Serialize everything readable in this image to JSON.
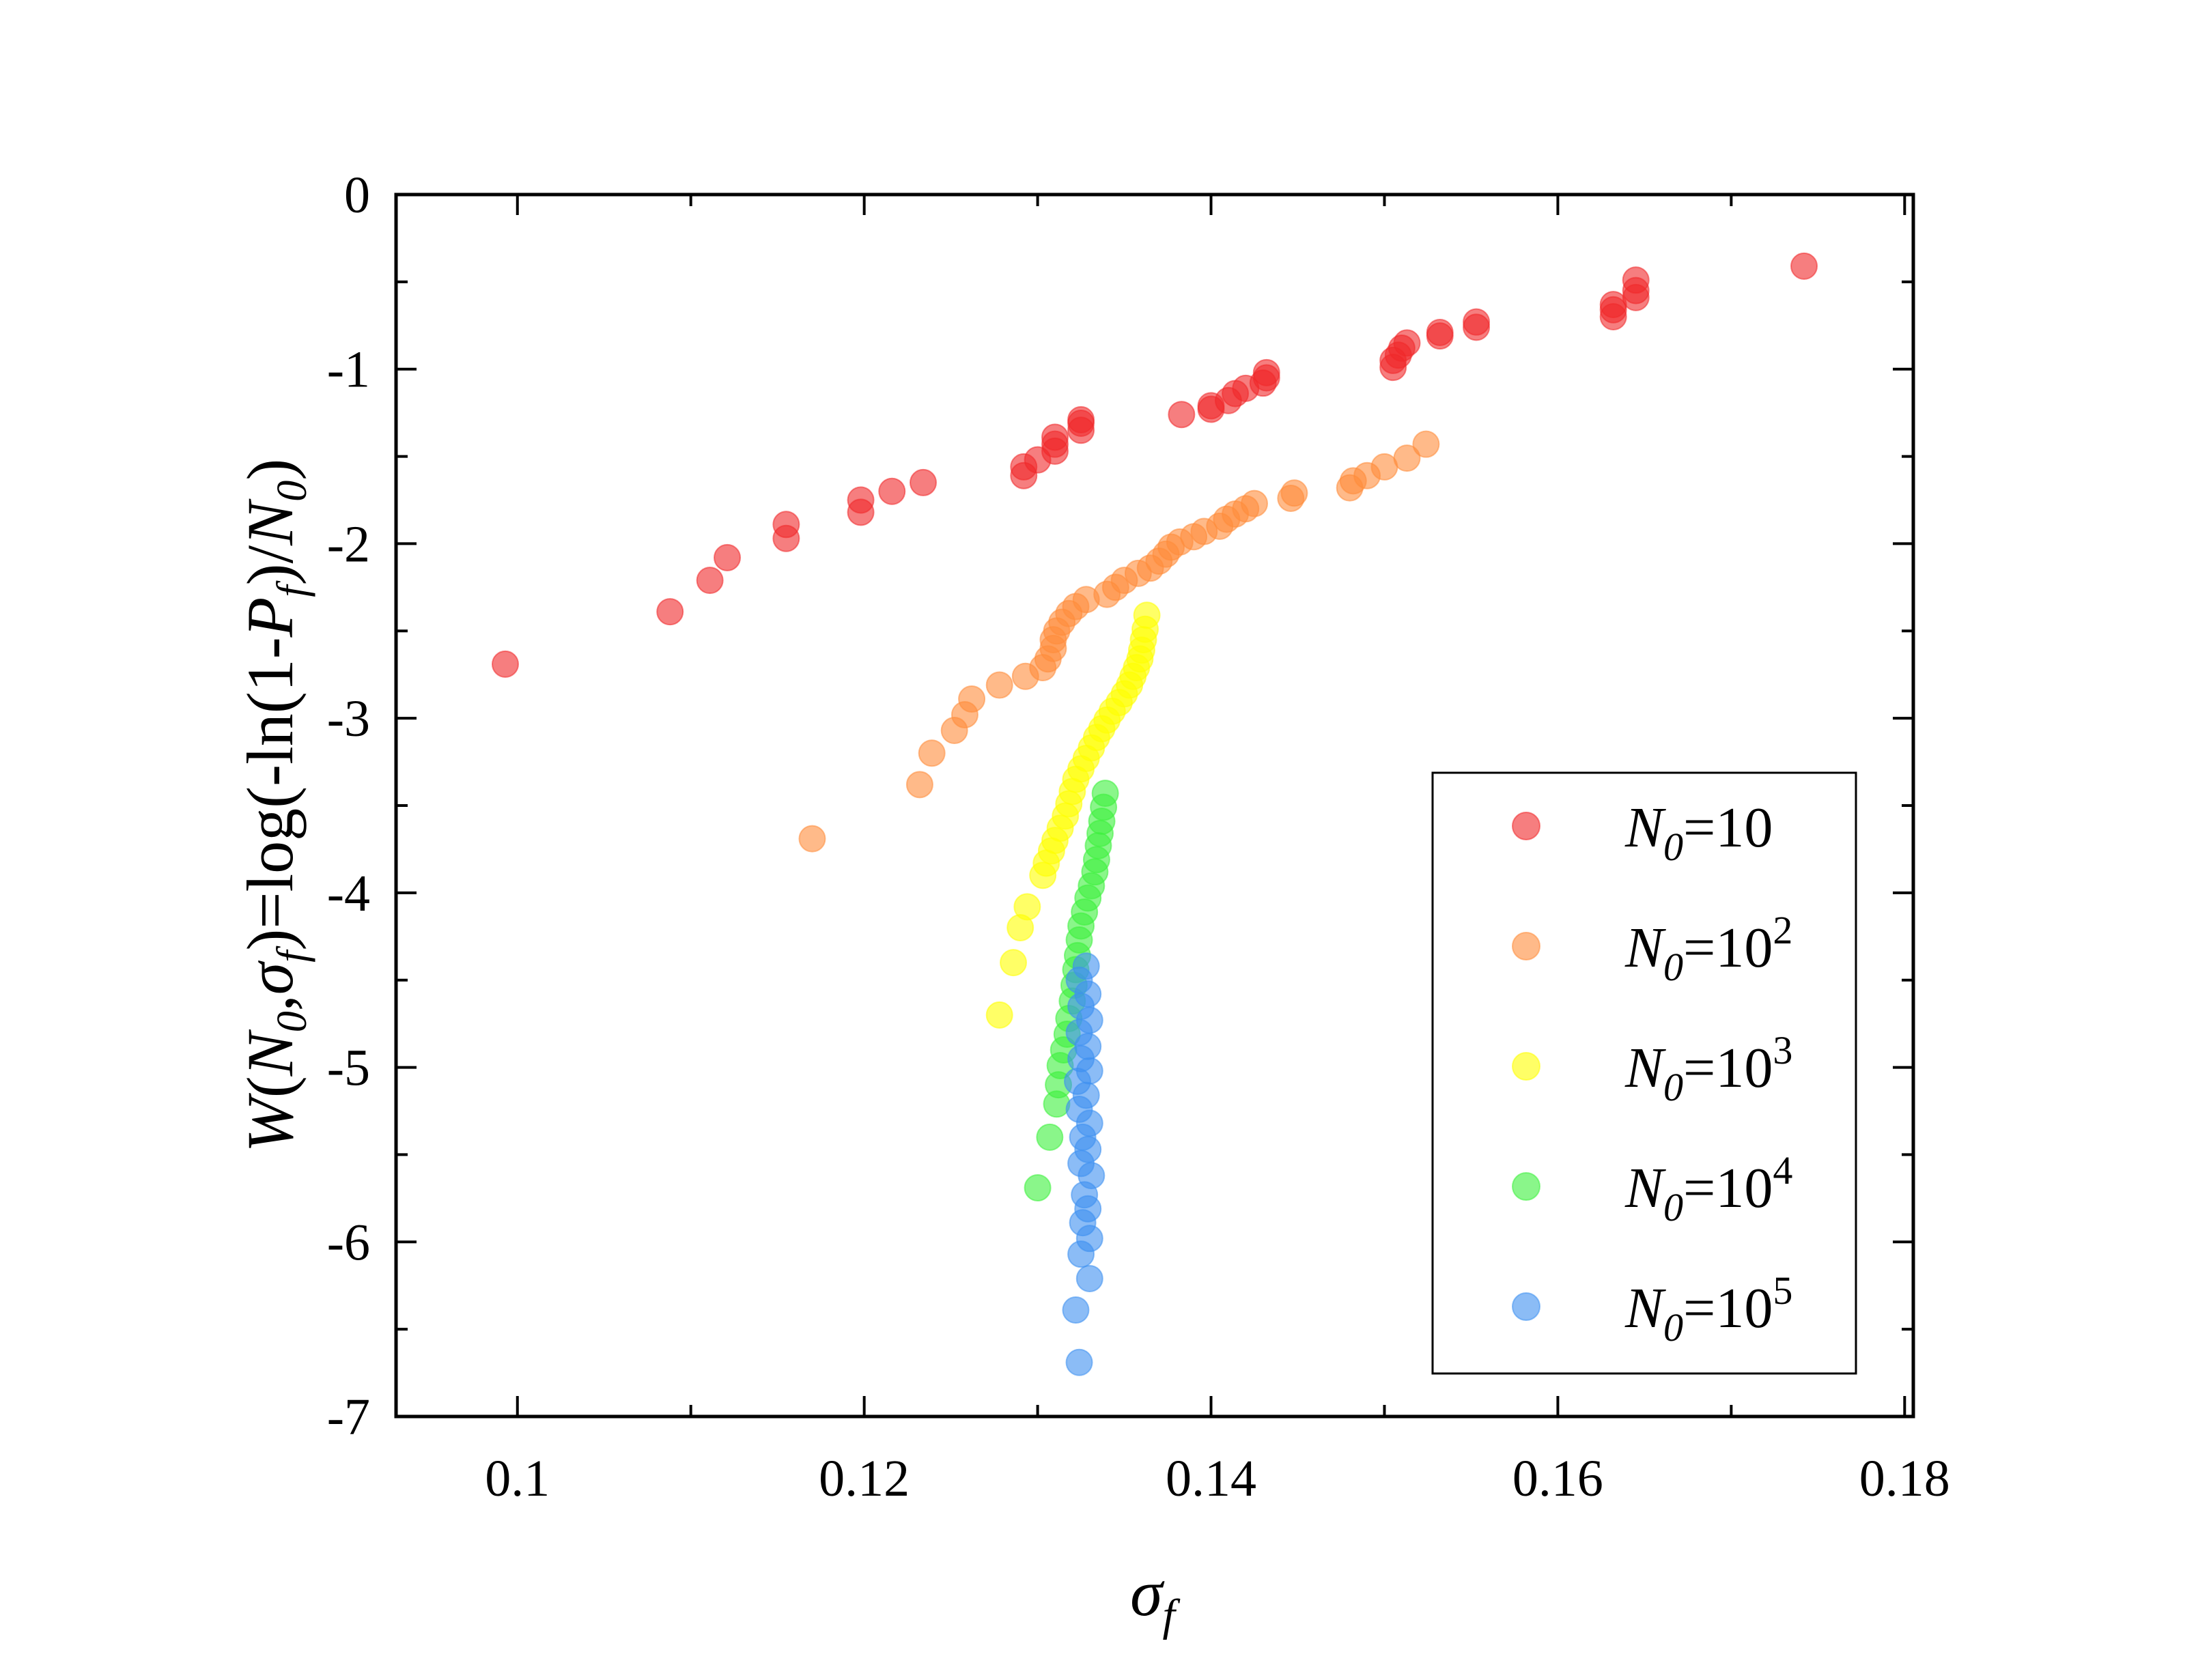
{
  "chart_data": {
    "type": "scatter",
    "title": "",
    "xlabel": "σ_f",
    "xlabel_parts": {
      "main": "σ",
      "sub": "f"
    },
    "ylabel": "W(N_0,σ_f)=log(-ln(1-P_f)/N_0)",
    "ylabel_parts": {
      "w": "W",
      "open": "(",
      "n": "N",
      "nsub": "0",
      "comma": ",",
      "sigma": "σ",
      "fsub": "f",
      "mid": ")=log(-ln(1-",
      "p": "P",
      "psub": "f",
      "slash": ")/",
      "n2": "N",
      "n2sub": "0",
      "close": ")"
    },
    "xlim": [
      0.093,
      0.1805
    ],
    "ylim": [
      -7,
      0
    ],
    "xticks": [
      0.1,
      0.12,
      0.14,
      0.16,
      0.18
    ],
    "xtick_labels": [
      "0.1",
      "0.12",
      "0.14",
      "0.16",
      "0.18"
    ],
    "yticks": [
      0,
      -1,
      -2,
      -3,
      -4,
      -5,
      -6,
      -7
    ],
    "ytick_labels": [
      "0",
      "-1",
      "-2",
      "-3",
      "-4",
      "-5",
      "-6",
      "-7"
    ],
    "legend_position": "lower-right",
    "series": [
      {
        "name": "N_0=10",
        "label_parts": {
          "n": "N",
          "sub": "0",
          "eq": "=10",
          "exp": ""
        },
        "color": "#f0282a",
        "points": [
          [
            0.0993,
            -2.69
          ],
          [
            0.1088,
            -2.39
          ],
          [
            0.1111,
            -2.21
          ],
          [
            0.1121,
            -2.08
          ],
          [
            0.1155,
            -1.97
          ],
          [
            0.1155,
            -1.89
          ],
          [
            0.1198,
            -1.82
          ],
          [
            0.1198,
            -1.75
          ],
          [
            0.1216,
            -1.7
          ],
          [
            0.1234,
            -1.65
          ],
          [
            0.1292,
            -1.61
          ],
          [
            0.1292,
            -1.56
          ],
          [
            0.13,
            -1.52
          ],
          [
            0.131,
            -1.47
          ],
          [
            0.131,
            -1.43
          ],
          [
            0.131,
            -1.39
          ],
          [
            0.1325,
            -1.35
          ],
          [
            0.1325,
            -1.31
          ],
          [
            0.1325,
            -1.29
          ],
          [
            0.1383,
            -1.26
          ],
          [
            0.14,
            -1.23
          ],
          [
            0.14,
            -1.21
          ],
          [
            0.141,
            -1.18
          ],
          [
            0.1414,
            -1.14
          ],
          [
            0.142,
            -1.11
          ],
          [
            0.143,
            -1.08
          ],
          [
            0.1432,
            -1.05
          ],
          [
            0.1432,
            -1.02
          ],
          [
            0.1505,
            -0.99
          ],
          [
            0.1505,
            -0.95
          ],
          [
            0.1508,
            -0.92
          ],
          [
            0.151,
            -0.88
          ],
          [
            0.1513,
            -0.85
          ],
          [
            0.1532,
            -0.81
          ],
          [
            0.1532,
            -0.79
          ],
          [
            0.1553,
            -0.76
          ],
          [
            0.1553,
            -0.73
          ],
          [
            0.1632,
            -0.7
          ],
          [
            0.1632,
            -0.66
          ],
          [
            0.1632,
            -0.63
          ],
          [
            0.1645,
            -0.59
          ],
          [
            0.1645,
            -0.55
          ],
          [
            0.1645,
            -0.49
          ],
          [
            0.1742,
            -0.41
          ]
        ]
      },
      {
        "name": "N_0=10^2",
        "label_parts": {
          "n": "N",
          "sub": "0",
          "eq": "=10",
          "exp": "2"
        },
        "color": "#ff8c3a",
        "points": [
          [
            0.117,
            -3.69
          ],
          [
            0.1232,
            -3.38
          ],
          [
            0.1239,
            -3.2
          ],
          [
            0.1252,
            -3.07
          ],
          [
            0.1258,
            -2.98
          ],
          [
            0.1262,
            -2.89
          ],
          [
            0.1278,
            -2.81
          ],
          [
            0.1293,
            -2.76
          ],
          [
            0.1303,
            -2.71
          ],
          [
            0.1306,
            -2.66
          ],
          [
            0.1309,
            -2.6
          ],
          [
            0.1309,
            -2.55
          ],
          [
            0.1311,
            -2.5
          ],
          [
            0.1314,
            -2.45
          ],
          [
            0.1318,
            -2.4
          ],
          [
            0.1322,
            -2.36
          ],
          [
            0.1328,
            -2.32
          ],
          [
            0.134,
            -2.29
          ],
          [
            0.1345,
            -2.25
          ],
          [
            0.135,
            -2.21
          ],
          [
            0.1358,
            -2.17
          ],
          [
            0.1365,
            -2.14
          ],
          [
            0.137,
            -2.1
          ],
          [
            0.1374,
            -2.06
          ],
          [
            0.1377,
            -2.02
          ],
          [
            0.1382,
            -1.99
          ],
          [
            0.139,
            -1.96
          ],
          [
            0.1396,
            -1.93
          ],
          [
            0.1405,
            -1.9
          ],
          [
            0.1409,
            -1.86
          ],
          [
            0.1414,
            -1.83
          ],
          [
            0.142,
            -1.8
          ],
          [
            0.1425,
            -1.77
          ],
          [
            0.1446,
            -1.74
          ],
          [
            0.1448,
            -1.71
          ],
          [
            0.148,
            -1.68
          ],
          [
            0.1482,
            -1.64
          ],
          [
            0.149,
            -1.61
          ],
          [
            0.15,
            -1.56
          ],
          [
            0.1513,
            -1.51
          ],
          [
            0.1524,
            -1.43
          ]
        ]
      },
      {
        "name": "N_0=10^3",
        "label_parts": {
          "n": "N",
          "sub": "0",
          "eq": "=10",
          "exp": "3"
        },
        "color": "#ffff00",
        "points": [
          [
            0.1278,
            -4.7
          ],
          [
            0.1286,
            -4.4
          ],
          [
            0.129,
            -4.2
          ],
          [
            0.1294,
            -4.08
          ],
          [
            0.1303,
            -3.9
          ],
          [
            0.1305,
            -3.83
          ],
          [
            0.1308,
            -3.76
          ],
          [
            0.131,
            -3.7
          ],
          [
            0.1313,
            -3.63
          ],
          [
            0.1316,
            -3.56
          ],
          [
            0.1318,
            -3.49
          ],
          [
            0.132,
            -3.42
          ],
          [
            0.1322,
            -3.35
          ],
          [
            0.1325,
            -3.29
          ],
          [
            0.1328,
            -3.23
          ],
          [
            0.1331,
            -3.17
          ],
          [
            0.1334,
            -3.11
          ],
          [
            0.1337,
            -3.06
          ],
          [
            0.134,
            -3.01
          ],
          [
            0.1343,
            -2.96
          ],
          [
            0.1347,
            -2.91
          ],
          [
            0.135,
            -2.86
          ],
          [
            0.1353,
            -2.81
          ],
          [
            0.1355,
            -2.76
          ],
          [
            0.1357,
            -2.71
          ],
          [
            0.1359,
            -2.66
          ],
          [
            0.136,
            -2.61
          ],
          [
            0.1361,
            -2.55
          ],
          [
            0.1362,
            -2.49
          ],
          [
            0.1363,
            -2.41
          ]
        ]
      },
      {
        "name": "N_0=10^4",
        "label_parts": {
          "n": "N",
          "sub": "0",
          "eq": "=10",
          "exp": "4"
        },
        "color": "#3cf03c",
        "points": [
          [
            0.13,
            -5.69
          ],
          [
            0.1307,
            -5.4
          ],
          [
            0.1311,
            -5.21
          ],
          [
            0.1312,
            -5.1
          ],
          [
            0.1313,
            -4.99
          ],
          [
            0.1315,
            -4.9
          ],
          [
            0.1317,
            -4.81
          ],
          [
            0.1318,
            -4.72
          ],
          [
            0.132,
            -4.62
          ],
          [
            0.1321,
            -4.53
          ],
          [
            0.1322,
            -4.44
          ],
          [
            0.1323,
            -4.36
          ],
          [
            0.1324,
            -4.27
          ],
          [
            0.1325,
            -4.19
          ],
          [
            0.1327,
            -4.11
          ],
          [
            0.1329,
            -4.03
          ],
          [
            0.1331,
            -3.96
          ],
          [
            0.1333,
            -3.88
          ],
          [
            0.1334,
            -3.81
          ],
          [
            0.1335,
            -3.73
          ],
          [
            0.1336,
            -3.66
          ],
          [
            0.1337,
            -3.59
          ],
          [
            0.1338,
            -3.51
          ],
          [
            0.1339,
            -3.43
          ]
        ]
      },
      {
        "name": "N_0=10^5",
        "label_parts": {
          "n": "N",
          "sub": "0",
          "eq": "=10",
          "exp": "5"
        },
        "color": "#3d8ff0",
        "points": [
          [
            0.1324,
            -6.69
          ],
          [
            0.1322,
            -6.39
          ],
          [
            0.133,
            -6.21
          ],
          [
            0.1325,
            -6.07
          ],
          [
            0.133,
            -5.98
          ],
          [
            0.1326,
            -5.89
          ],
          [
            0.1329,
            -5.81
          ],
          [
            0.1327,
            -5.73
          ],
          [
            0.1331,
            -5.62
          ],
          [
            0.1325,
            -5.55
          ],
          [
            0.1329,
            -5.47
          ],
          [
            0.1326,
            -5.4
          ],
          [
            0.133,
            -5.32
          ],
          [
            0.1324,
            -5.24
          ],
          [
            0.1328,
            -5.16
          ],
          [
            0.1323,
            -5.08
          ],
          [
            0.133,
            -5.02
          ],
          [
            0.1325,
            -4.95
          ],
          [
            0.1329,
            -4.88
          ],
          [
            0.1324,
            -4.8
          ],
          [
            0.133,
            -4.73
          ],
          [
            0.1325,
            -4.65
          ],
          [
            0.1329,
            -4.58
          ],
          [
            0.1324,
            -4.5
          ],
          [
            0.1328,
            -4.42
          ]
        ]
      }
    ]
  }
}
